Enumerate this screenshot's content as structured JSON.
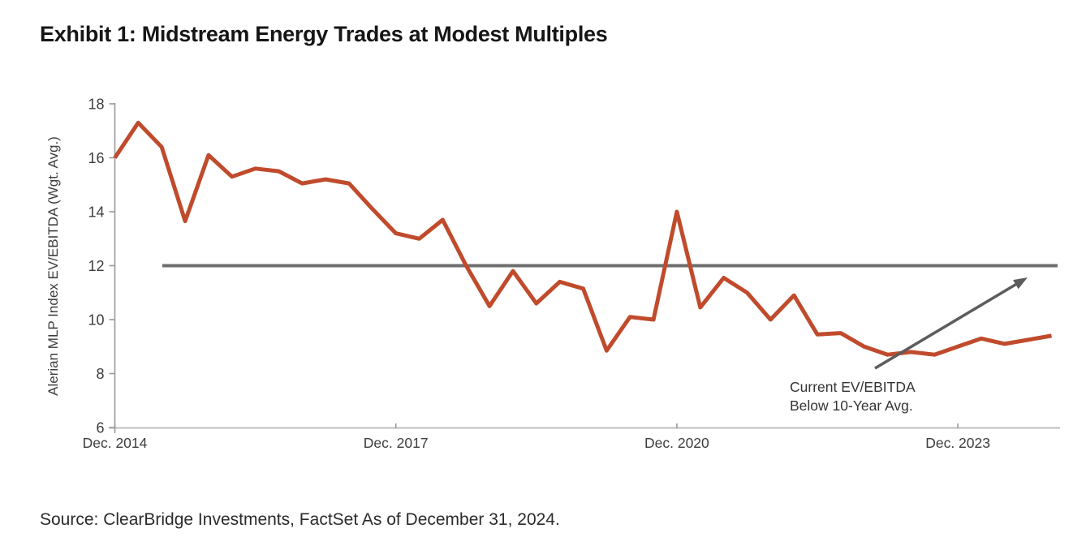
{
  "title": "Exhibit 1: Midstream Energy Trades at Modest Multiples",
  "source": "Source: ClearBridge Investments, FactSet As of December 31, 2024.",
  "colors": {
    "series": "#c04b2c",
    "average_line": "#6e6e6e",
    "arrow": "#5c5c5c",
    "axis_line": "#bfbfbf",
    "tick_mark": "#9a9a9a",
    "tick_text": "#3d3d3d",
    "title_text": "#161616",
    "source_text": "#2b2b2b",
    "annotation_text": "#343434"
  },
  "chart_data": {
    "type": "line",
    "title": "Exhibit 1: Midstream Energy Trades at Modest Multiples",
    "xlabel": "",
    "ylabel": "Alerian MLP Index EV/EBITDA (Wgt. Avg.)",
    "ylim": [
      6,
      18
    ],
    "y_ticks": [
      6,
      8,
      10,
      12,
      14,
      16,
      18
    ],
    "grid": false,
    "legend": "none",
    "x": [
      "Dec. 2014",
      "Mar. 2015",
      "Jun. 2015",
      "Sep. 2015",
      "Dec. 2015",
      "Mar. 2016",
      "Jun. 2016",
      "Sep. 2016",
      "Dec. 2016",
      "Mar. 2017",
      "Jun. 2017",
      "Sep. 2017",
      "Dec. 2017",
      "Mar. 2018",
      "Jun. 2018",
      "Sep. 2018",
      "Dec. 2018",
      "Mar. 2019",
      "Jun. 2019",
      "Sep. 2019",
      "Dec. 2019",
      "Mar. 2020",
      "Jun. 2020",
      "Sep. 2020",
      "Dec. 2020",
      "Mar. 2021",
      "Jun. 2021",
      "Sep. 2021",
      "Dec. 2021",
      "Mar. 2022",
      "Jun. 2022",
      "Sep. 2022",
      "Dec. 2022",
      "Mar. 2023",
      "Jun. 2023",
      "Sep. 2023",
      "Dec. 2023",
      "Mar. 2024",
      "Jun. 2024",
      "Sep. 2024",
      "Dec. 2024"
    ],
    "x_tick_labels": [
      {
        "index": 0,
        "label": "Dec. 2014"
      },
      {
        "index": 12,
        "label": "Dec. 2017"
      },
      {
        "index": 24,
        "label": "Dec. 2020"
      },
      {
        "index": 36,
        "label": "Dec. 2023"
      }
    ],
    "series": [
      {
        "name": "Alerian MLP Index EV/EBITDA (Wgt. Avg.)",
        "values": [
          16.0,
          17.3,
          16.4,
          13.65,
          16.1,
          15.3,
          15.6,
          15.5,
          15.05,
          15.2,
          15.05,
          14.1,
          13.2,
          13.0,
          13.7,
          12.0,
          10.5,
          11.8,
          10.6,
          11.4,
          11.15,
          8.85,
          10.1,
          10.0,
          14.0,
          10.45,
          11.55,
          11.0,
          10.0,
          10.9,
          9.45,
          9.5,
          9.0,
          8.7,
          8.8,
          8.7,
          9.0,
          9.3,
          9.1,
          9.25,
          9.4
        ]
      }
    ],
    "average_line": {
      "value": 12,
      "description": "10-Year Avg."
    },
    "annotation": {
      "line1": "Current EV/EBITDA",
      "line2": "Below 10-Year Avg."
    }
  }
}
